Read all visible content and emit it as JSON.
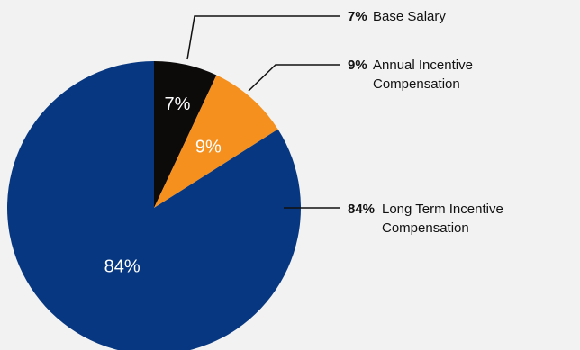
{
  "chart_data": {
    "type": "pie",
    "title": "",
    "slices": [
      {
        "pct": 7,
        "slice_label": "7%",
        "legend_pct": "7%",
        "legend_lines": [
          "Base Salary"
        ],
        "color": "#0d0a0a",
        "text_color": "#ffffff"
      },
      {
        "pct": 9,
        "slice_label": "9%",
        "legend_pct": "9%",
        "legend_lines": [
          "Annual Incentive",
          "Compensation"
        ],
        "color": "#f5901e",
        "text_color": "#ffffff"
      },
      {
        "pct": 84,
        "slice_label": "84%",
        "legend_pct": "84%",
        "legend_lines": [
          "Long Term Incentive",
          "Compensation"
        ],
        "color": "#063780",
        "text_color": "#ffffff"
      }
    ]
  }
}
